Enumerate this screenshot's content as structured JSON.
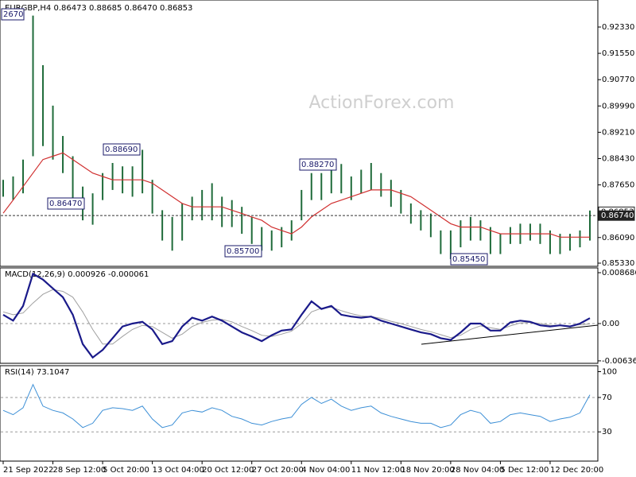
{
  "chart_data": [
    {
      "type": "hl_bar",
      "title": "EURGBP,H4 0.86473 0.88685 0.86470 0.86853",
      "watermark": "ActionForex.com",
      "color": "#1f6b3a",
      "high": [
        0.878,
        0.879,
        0.884,
        0.9267,
        0.912,
        0.9,
        0.891,
        0.885,
        0.876,
        0.874,
        0.88,
        0.883,
        0.882,
        0.882,
        0.8869,
        0.878,
        0.869,
        0.867,
        0.871,
        0.873,
        0.875,
        0.877,
        0.873,
        0.872,
        0.87,
        0.867,
        0.864,
        0.863,
        0.864,
        0.866,
        0.875,
        0.88,
        0.88,
        0.882,
        0.8827,
        0.879,
        0.881,
        0.883,
        0.88,
        0.878,
        0.875,
        0.871,
        0.869,
        0.868,
        0.863,
        0.863,
        0.866,
        0.867,
        0.866,
        0.864,
        0.862,
        0.864,
        0.865,
        0.865,
        0.865,
        0.863,
        0.862,
        0.862,
        0.863,
        0.8689
      ],
      "low": [
        0.873,
        0.872,
        0.874,
        0.885,
        0.888,
        0.884,
        0.88,
        0.872,
        0.866,
        0.8647,
        0.872,
        0.875,
        0.874,
        0.873,
        0.874,
        0.868,
        0.86,
        0.857,
        0.86,
        0.866,
        0.866,
        0.866,
        0.864,
        0.864,
        0.862,
        0.859,
        0.857,
        0.857,
        0.858,
        0.86,
        0.866,
        0.872,
        0.872,
        0.874,
        0.874,
        0.872,
        0.874,
        0.875,
        0.873,
        0.87,
        0.868,
        0.865,
        0.863,
        0.861,
        0.856,
        0.8545,
        0.858,
        0.86,
        0.86,
        0.856,
        0.856,
        0.859,
        0.859,
        0.86,
        0.859,
        0.856,
        0.856,
        0.857,
        0.858,
        0.86
      ],
      "ma": {
        "color": "#d03030",
        "values": [
          0.8681,
          0.872,
          0.876,
          0.88,
          0.884,
          0.885,
          0.886,
          0.884,
          0.882,
          0.88,
          0.879,
          0.878,
          0.878,
          0.878,
          0.878,
          0.877,
          0.875,
          0.873,
          0.871,
          0.87,
          0.87,
          0.87,
          0.87,
          0.869,
          0.868,
          0.867,
          0.866,
          0.864,
          0.863,
          0.862,
          0.864,
          0.867,
          0.869,
          0.871,
          0.872,
          0.873,
          0.874,
          0.875,
          0.875,
          0.875,
          0.874,
          0.873,
          0.871,
          0.869,
          0.867,
          0.865,
          0.864,
          0.864,
          0.864,
          0.863,
          0.862,
          0.862,
          0.862,
          0.862,
          0.862,
          0.862,
          0.861,
          0.861,
          0.861,
          0.861
        ]
      },
      "ylim": [
        0.85236,
        0.93084
      ],
      "yticks": [
        {
          "value": 0.9233,
          "label": "0.92330"
        },
        {
          "value": 0.9155,
          "label": "0.91550"
        },
        {
          "value": 0.9077,
          "label": "0.90770"
        },
        {
          "value": 0.8999,
          "label": "0.89990"
        },
        {
          "value": 0.8921,
          "label": "0.89210"
        },
        {
          "value": 0.8843,
          "label": "0.88430"
        },
        {
          "value": 0.8765,
          "label": "0.87650"
        },
        {
          "value": 0.8609,
          "label": "0.86090"
        },
        {
          "value": 0.8533,
          "label": "0.85330"
        }
      ],
      "price_labels": [
        {
          "value": 0.86853,
          "label": "0.86853"
        },
        {
          "value": 0.8674,
          "label": "0.86740"
        }
      ],
      "annotations": [
        "2670",
        "0.88690",
        "0.86470",
        "0.85700",
        "0.88270",
        "0.85450"
      ]
    },
    {
      "type": "macd",
      "title": "MACD(12,26,9) 0.000926 -0.000061",
      "series": [
        {
          "color": "#1a1a8a",
          "values": [
            0.0015,
            0.0005,
            0.003,
            0.0085,
            0.0075,
            0.006,
            0.0045,
            0.0015,
            -0.0035,
            -0.0058,
            -0.0045,
            -0.0025,
            -0.0005,
            0,
            0.0003,
            -0.001,
            -0.0035,
            -0.003,
            -0.0005,
            0.001,
            0.0005,
            0.0012,
            0.0005,
            -0.0005,
            -0.0015,
            -0.0022,
            -0.003,
            -0.002,
            -0.0012,
            -0.001,
            0.0015,
            0.0038,
            0.0025,
            0.003,
            0.0015,
            0.0012,
            0.001,
            0.0012,
            0.0005,
            0,
            -0.0005,
            -0.001,
            -0.0015,
            -0.0018,
            -0.0025,
            -0.0028,
            -0.0015,
            0,
            0,
            -0.0012,
            -0.0012,
            0.0002,
            0.0005,
            0.0003,
            -0.0003,
            -0.0005,
            -0.0003,
            -0.0005,
            0,
            0.000926
          ]
        },
        {
          "color": "#a0a0a0",
          "values": [
            0.002,
            0.0015,
            0.0018,
            0.0035,
            0.005,
            0.0058,
            0.0055,
            0.0045,
            0.002,
            -0.001,
            -0.0035,
            -0.0035,
            -0.0022,
            -0.001,
            -0.0003,
            -0.0005,
            -0.0015,
            -0.0025,
            -0.0018,
            -0.0005,
            0.0002,
            0.0006,
            0.0007,
            0.0003,
            -0.0005,
            -0.0012,
            -0.002,
            -0.0022,
            -0.0018,
            -0.0013,
            0,
            0.002,
            0.0026,
            0.0028,
            0.0022,
            0.0017,
            0.0013,
            0.0012,
            0.0009,
            0.0004,
            0,
            -0.0005,
            -0.001,
            -0.0014,
            -0.0019,
            -0.0024,
            -0.002,
            -0.001,
            -0.0004,
            -0.0007,
            -0.001,
            -0.0004,
            0.0001,
            0.0002,
            0,
            -0.0003,
            -0.0003,
            -0.0004,
            -0.0002,
            -6.1e-05
          ]
        }
      ],
      "ylim": [
        -0.006786,
        0.009365
      ],
      "yticks": [
        {
          "value": 0.008686,
          "label": "0.008686"
        },
        {
          "value": 0,
          "label": "0.00"
        },
        {
          "value": -0.006366,
          "label": "-0.006366"
        }
      ],
      "grid_at": [
        0
      ]
    },
    {
      "type": "line",
      "title": "RSI(14) 73.1047",
      "categories": [
        "21 Sep 2022",
        null,
        null,
        null,
        null,
        "28 Sep 12:00",
        null,
        null,
        null,
        null,
        "5 Oct 20:00",
        null,
        null,
        null,
        null,
        "13 Oct 04:00",
        null,
        null,
        null,
        null,
        "20 Oct 12:00",
        null,
        null,
        null,
        null,
        "27 Oct 20:00",
        null,
        null,
        null,
        null,
        "4 Nov 04:00",
        null,
        null,
        null,
        null,
        "11 Nov 12:00",
        null,
        null,
        null,
        null,
        "18 Nov 20:00",
        null,
        null,
        null,
        null,
        "28 Nov 04:00",
        null,
        null,
        null,
        null,
        "5 Dec 12:00",
        null,
        null,
        null,
        null,
        "12 Dec 20:00",
        null,
        null,
        null,
        null
      ],
      "series": [
        {
          "color": "#3c8fd6",
          "values": [
            55,
            50,
            58,
            85,
            60,
            55,
            52,
            45,
            35,
            40,
            55,
            58,
            57,
            55,
            60,
            45,
            35,
            38,
            52,
            55,
            53,
            58,
            55,
            48,
            45,
            40,
            38,
            42,
            45,
            47,
            62,
            70,
            63,
            68,
            60,
            55,
            58,
            60,
            52,
            48,
            45,
            42,
            40,
            40,
            35,
            38,
            50,
            55,
            52,
            40,
            42,
            50,
            52,
            50,
            48,
            42,
            45,
            47,
            52,
            73.1047
          ]
        }
      ],
      "ylim": [
        -4,
        106
      ],
      "yticks": [
        100,
        70,
        30
      ],
      "grid_at": [
        70,
        30
      ]
    }
  ]
}
